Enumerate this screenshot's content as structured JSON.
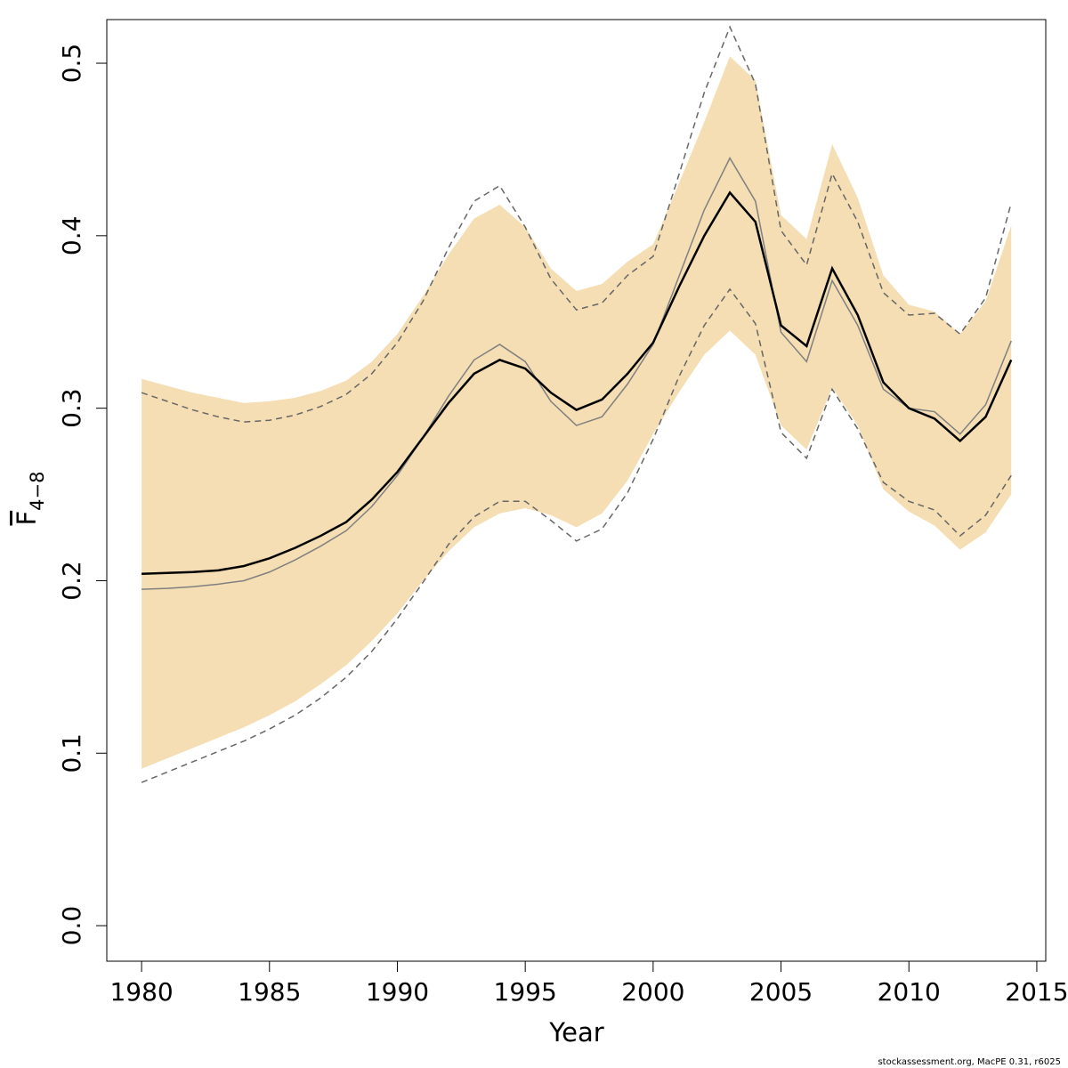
{
  "chart_data": {
    "type": "line",
    "x_label": "Year",
    "y_label": "F",
    "y_label_sub": "4−8",
    "footer": "stockassessment.org, MacPE 0.31, r6025",
    "x": [
      1980,
      1981,
      1982,
      1983,
      1984,
      1985,
      1986,
      1987,
      1988,
      1989,
      1990,
      1991,
      1992,
      1993,
      1994,
      1995,
      1996,
      1997,
      1998,
      1999,
      2000,
      2001,
      2002,
      2003,
      2004,
      2005,
      2006,
      2007,
      2008,
      2009,
      2010,
      2011,
      2012,
      2013,
      2014
    ],
    "xlim": [
      1978.64,
      2015.35
    ],
    "xticks": [
      1980,
      1985,
      1990,
      1995,
      2000,
      2005,
      2010,
      2015
    ],
    "ylim": [
      -0.0206,
      0.5253
    ],
    "yticks": [
      {
        "value": 0,
        "label": "0.0"
      },
      0.1,
      0.2,
      0.3,
      0.4,
      0.5
    ],
    "bands": [
      {
        "color": "#f5deb3",
        "upper": [
          0.317,
          0.313,
          0.309,
          0.306,
          0.303,
          0.304,
          0.306,
          0.31,
          0.316,
          0.327,
          0.343,
          0.365,
          0.389,
          0.41,
          0.418,
          0.405,
          0.381,
          0.368,
          0.372,
          0.385,
          0.395,
          0.43,
          0.466,
          0.504,
          0.49,
          0.412,
          0.398,
          0.453,
          0.422,
          0.377,
          0.36,
          0.356,
          0.343,
          0.362,
          0.406
        ],
        "lower": [
          0.091,
          0.097,
          0.103,
          0.109,
          0.115,
          0.122,
          0.13,
          0.14,
          0.151,
          0.165,
          0.181,
          0.2,
          0.217,
          0.231,
          0.239,
          0.242,
          0.238,
          0.231,
          0.239,
          0.258,
          0.285,
          0.309,
          0.331,
          0.345,
          0.331,
          0.29,
          0.276,
          0.312,
          0.29,
          0.253,
          0.24,
          0.232,
          0.218,
          0.228,
          0.25
        ]
      }
    ],
    "series": [
      {
        "color": "#666666",
        "dash": true,
        "values": [
          0.309,
          0.304,
          0.299,
          0.295,
          0.292,
          0.293,
          0.296,
          0.301,
          0.308,
          0.32,
          0.338,
          0.362,
          0.393,
          0.42,
          0.429,
          0.405,
          0.375,
          0.357,
          0.361,
          0.377,
          0.388,
          0.435,
          0.483,
          0.521,
          0.488,
          0.403,
          0.383,
          0.436,
          0.408,
          0.367,
          0.354,
          0.355,
          0.343,
          0.364,
          0.419
        ]
      },
      {
        "color": "#666666",
        "dash": true,
        "values": [
          0.083,
          0.089,
          0.095,
          0.101,
          0.107,
          0.114,
          0.122,
          0.132,
          0.144,
          0.159,
          0.178,
          0.199,
          0.221,
          0.237,
          0.246,
          0.246,
          0.235,
          0.223,
          0.23,
          0.251,
          0.282,
          0.318,
          0.348,
          0.369,
          0.349,
          0.286,
          0.271,
          0.311,
          0.288,
          0.257,
          0.246,
          0.241,
          0.226,
          0.238,
          0.261
        ]
      },
      {
        "color": "#808080",
        "dash": false,
        "values": [
          0.195,
          0.1955,
          0.1965,
          0.198,
          0.2,
          0.205,
          0.212,
          0.22,
          0.229,
          0.243,
          0.261,
          0.283,
          0.307,
          0.328,
          0.337,
          0.327,
          0.304,
          0.29,
          0.295,
          0.314,
          0.337,
          0.376,
          0.415,
          0.445,
          0.42,
          0.344,
          0.327,
          0.374,
          0.348,
          0.311,
          0.3,
          0.298,
          0.285,
          0.302,
          0.339
        ]
      },
      {
        "color": "#000000",
        "dash": false,
        "values": [
          0.204,
          0.2045,
          0.205,
          0.206,
          0.2085,
          0.213,
          0.219,
          0.226,
          0.234,
          0.247,
          0.263,
          0.283,
          0.303,
          0.32,
          0.328,
          0.323,
          0.309,
          0.299,
          0.305,
          0.32,
          0.338,
          0.37,
          0.4,
          0.425,
          0.408,
          0.348,
          0.336,
          0.381,
          0.354,
          0.315,
          0.3,
          0.294,
          0.281,
          0.295,
          0.328
        ]
      }
    ]
  }
}
